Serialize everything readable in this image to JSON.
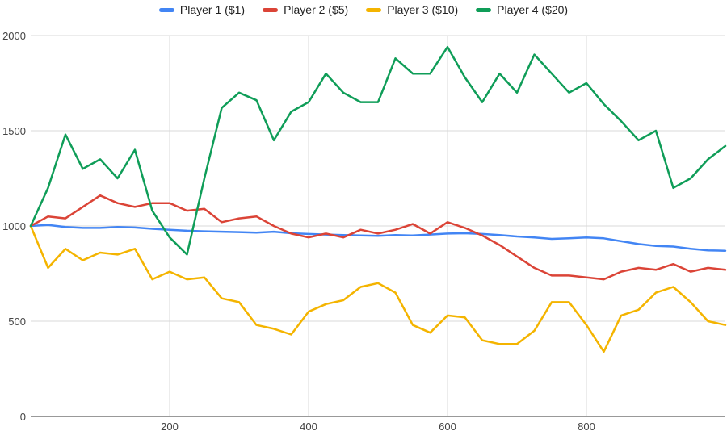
{
  "chart_data": {
    "type": "line",
    "title": "",
    "xlabel": "",
    "ylabel": "",
    "xlim": [
      0,
      1000
    ],
    "ylim": [
      0,
      2000
    ],
    "x_ticks": [
      200,
      400,
      600,
      800
    ],
    "y_ticks": [
      0,
      500,
      1000,
      1500,
      2000
    ],
    "grid": true,
    "legend_position": "top",
    "series": [
      {
        "name": "Player 1 ($1)",
        "color": "#4285F4",
        "x": [
          0,
          25,
          50,
          75,
          100,
          125,
          150,
          175,
          200,
          225,
          250,
          275,
          300,
          325,
          350,
          375,
          400,
          425,
          450,
          475,
          500,
          525,
          550,
          575,
          600,
          625,
          650,
          675,
          700,
          725,
          750,
          775,
          800,
          825,
          850,
          875,
          900,
          925,
          950,
          975,
          1000
        ],
        "y": [
          1000,
          1005,
          995,
          990,
          990,
          995,
          992,
          985,
          980,
          975,
          972,
          970,
          968,
          965,
          970,
          962,
          958,
          955,
          952,
          950,
          948,
          952,
          950,
          955,
          960,
          962,
          958,
          952,
          945,
          940,
          932,
          935,
          940,
          935,
          920,
          905,
          895,
          892,
          880,
          872,
          870
        ]
      },
      {
        "name": "Player 2 ($5)",
        "color": "#DB4437",
        "x": [
          0,
          25,
          50,
          75,
          100,
          125,
          150,
          175,
          200,
          225,
          250,
          275,
          300,
          325,
          350,
          375,
          400,
          425,
          450,
          475,
          500,
          525,
          550,
          575,
          600,
          625,
          650,
          675,
          700,
          725,
          750,
          775,
          800,
          825,
          850,
          875,
          900,
          925,
          950,
          975,
          1000
        ],
        "y": [
          1000,
          1050,
          1040,
          1100,
          1160,
          1120,
          1100,
          1120,
          1120,
          1080,
          1090,
          1020,
          1040,
          1050,
          1000,
          960,
          940,
          960,
          940,
          980,
          960,
          980,
          1010,
          960,
          1020,
          990,
          950,
          900,
          840,
          780,
          740,
          740,
          730,
          720,
          760,
          780,
          770,
          800,
          760,
          780,
          770
        ]
      },
      {
        "name": "Player 3 ($10)",
        "color": "#F4B400",
        "x": [
          0,
          25,
          50,
          75,
          100,
          125,
          150,
          175,
          200,
          225,
          250,
          275,
          300,
          325,
          350,
          375,
          400,
          425,
          450,
          475,
          500,
          525,
          550,
          575,
          600,
          625,
          650,
          675,
          700,
          725,
          750,
          775,
          800,
          825,
          850,
          875,
          900,
          925,
          950,
          975,
          1000
        ],
        "y": [
          1000,
          780,
          880,
          820,
          860,
          850,
          880,
          720,
          760,
          720,
          730,
          620,
          600,
          480,
          460,
          430,
          550,
          590,
          610,
          680,
          700,
          650,
          480,
          440,
          530,
          520,
          400,
          380,
          380,
          450,
          600,
          600,
          480,
          340,
          530,
          560,
          650,
          680,
          600,
          500,
          480
        ]
      },
      {
        "name": "Player 4 ($20)",
        "color": "#0F9D58",
        "x": [
          0,
          25,
          50,
          75,
          100,
          125,
          150,
          175,
          200,
          225,
          250,
          275,
          300,
          325,
          350,
          375,
          400,
          425,
          450,
          475,
          500,
          525,
          550,
          575,
          600,
          625,
          650,
          675,
          700,
          725,
          750,
          775,
          800,
          825,
          850,
          875,
          900,
          925,
          950,
          975,
          1000
        ],
        "y": [
          1000,
          1200,
          1480,
          1300,
          1350,
          1250,
          1400,
          1080,
          940,
          850,
          1250,
          1620,
          1700,
          1660,
          1450,
          1600,
          1650,
          1800,
          1700,
          1650,
          1650,
          1880,
          1800,
          1800,
          1940,
          1780,
          1650,
          1800,
          1700,
          1900,
          1800,
          1700,
          1750,
          1640,
          1550,
          1450,
          1500,
          1200,
          1250,
          1350,
          1420
        ]
      }
    ]
  }
}
